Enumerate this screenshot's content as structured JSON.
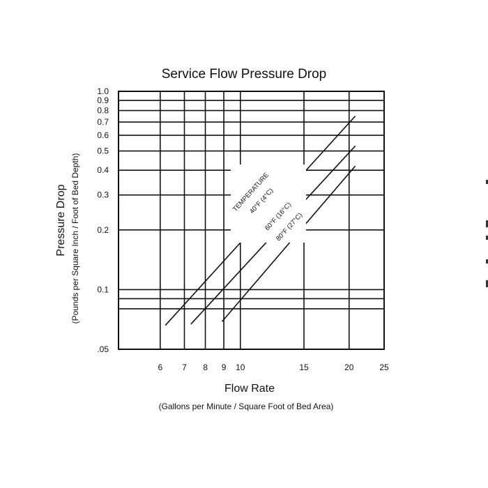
{
  "chart_data": {
    "type": "line",
    "title": "Service Flow Pressure Drop",
    "xlabel": "Flow Rate",
    "xlabel_sub": "(Gallons per Minute / Square Foot of Bed Area)",
    "ylabel": "Pressure Drop",
    "ylabel_sub": "(Pounds per Square Inch / Foot of Bed Depth)",
    "x_scale": "log",
    "y_scale": "log",
    "xlim": [
      4.6,
      25
    ],
    "ylim": [
      0.05,
      1.0
    ],
    "grid": true,
    "x_ticks": [
      6,
      7,
      8,
      9,
      10,
      15,
      20,
      25
    ],
    "x_tick_labels": [
      "6",
      "7",
      "8",
      "9",
      "10",
      "15",
      "20",
      "25"
    ],
    "y_ticks": [
      0.05,
      0.08,
      0.09,
      0.1,
      0.2,
      0.3,
      0.4,
      0.5,
      0.6,
      0.7,
      0.8,
      0.9,
      1.0
    ],
    "y_tick_labels": [
      ".05",
      "",
      "",
      "0.1",
      "0.2",
      "0.3",
      "0.4",
      "0.5",
      "0.6",
      "0.7",
      "0.8",
      "0.9",
      "1.0"
    ],
    "annotation_header": "TEMPERATURE",
    "series": [
      {
        "name": "40°F (4°C)",
        "x": [
          6.2,
          20.8
        ],
        "y": [
          0.066,
          0.75
        ]
      },
      {
        "name": "60°F (16°C)",
        "x": [
          7.3,
          20.8
        ],
        "y": [
          0.067,
          0.53
        ]
      },
      {
        "name": "80°F (27°C)",
        "x": [
          8.9,
          20.8
        ],
        "y": [
          0.069,
          0.42
        ]
      }
    ]
  }
}
